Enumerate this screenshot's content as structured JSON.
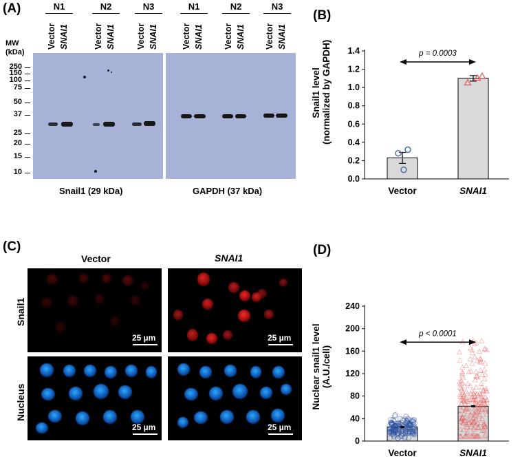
{
  "panelA": {
    "label": "(A)",
    "groups": [
      "N1",
      "N2",
      "N3",
      "N1",
      "N2",
      "N3"
    ],
    "lane_labels": [
      "Vector",
      "SNAI1"
    ],
    "mw_header": [
      "MW",
      "(kDa)"
    ],
    "mw_markers": [
      "250",
      "150",
      "100",
      "75",
      "50",
      "37",
      "25",
      "20",
      "15",
      "10"
    ],
    "caption_left": "Snail1 (29 kDa)",
    "caption_right": "GAPDH (37 kDa)"
  },
  "panelB": {
    "label": "(B)",
    "ylabel_line1": "Snail1 level",
    "ylabel_line2": "(normalized by GAPDH)",
    "pvalue": "p = 0.0003",
    "ticks": [
      "0.0",
      "0.2",
      "0.4",
      "0.6",
      "0.8",
      "1.0",
      "1.2",
      "1.4"
    ],
    "categories": [
      "Vector",
      "SNAI1"
    ]
  },
  "panelC": {
    "label": "(C)",
    "col_vector": "Vector",
    "col_snai1": "SNAI1",
    "row_snail1": "Snail1",
    "row_nucleus": "Nucleus",
    "scalebar": "25 µm"
  },
  "panelD": {
    "label": "(D)",
    "ylabel_line1": "Nuclear snail1 level",
    "ylabel_line2": "(A.U./cell)",
    "pvalue": "p < 0.0001",
    "ticks": [
      "0",
      "40",
      "80",
      "120",
      "160",
      "200",
      "240"
    ],
    "categories": [
      "Vector",
      "SNAI1"
    ]
  },
  "chart_data": [
    {
      "type": "bar",
      "panel": "B",
      "categories": [
        "Vector",
        "SNAI1"
      ],
      "values": [
        0.23,
        1.1
      ],
      "errors": [
        0.06,
        0.03
      ],
      "points": [
        [
          0.1,
          0.28,
          0.32
        ],
        [
          1.05,
          1.1,
          1.12
        ]
      ],
      "ylim": [
        0,
        1.4
      ],
      "annotation": "p = 0.0003",
      "colors": {
        "bar": "#d9d9d9",
        "vector_points": "#4a6fb5",
        "snai1_points": "#e06060"
      }
    },
    {
      "type": "bar",
      "panel": "D",
      "categories": [
        "Vector",
        "SNAI1"
      ],
      "values": [
        25,
        62
      ],
      "ylim": [
        0,
        240
      ],
      "annotation": "p < 0.0001",
      "colors": {
        "bar": "#d9d9d9",
        "vector_points": "#2a4f9e",
        "snai1_points": "#e25050"
      }
    }
  ]
}
